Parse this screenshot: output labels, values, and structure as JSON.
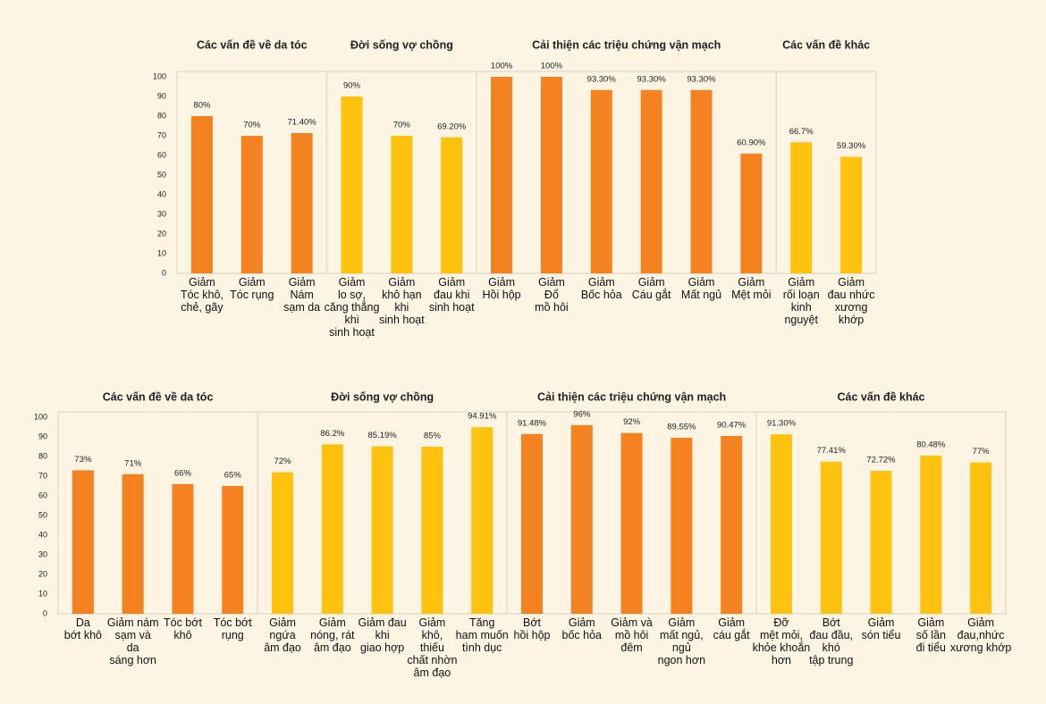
{
  "chart_data": [
    {
      "type": "bar",
      "ylim": [
        0,
        100
      ],
      "yticks": [
        0,
        10,
        20,
        30,
        40,
        50,
        60,
        70,
        80,
        90,
        100
      ],
      "grid": false,
      "groups": [
        {
          "title": "Các vấn đề về da tóc",
          "color": "#f58220",
          "categories": [
            "Giảm\nTóc khô,\nchẻ, gãy",
            "Giảm\nTóc rụng",
            "Giảm\nNám\nsạm da"
          ],
          "values": [
            80,
            70,
            71.4
          ],
          "value_labels": [
            "80%",
            "70%",
            "71.40%"
          ]
        },
        {
          "title": "Đời sống vợ chồng",
          "color": "#ffc20e",
          "categories": [
            "Giảm\nlo sợ,\ncăng thẳng\nkhi\nsinh hoạt",
            "Giảm\nkhô hạn\nkhi\nsinh hoạt",
            "Giảm\nđau khi\nsinh hoạt"
          ],
          "values": [
            90,
            70,
            69.2
          ],
          "value_labels": [
            "90%",
            "70%",
            "69.20%"
          ]
        },
        {
          "title": "Cải thiện các triệu chứng vận mạch",
          "color": "#f58220",
          "categories": [
            "Giảm\nHồi hộp",
            "Giảm\nĐổ\nmồ hôi",
            "Giảm\nBốc hỏa",
            "Giảm\nCáu gắt",
            "Giảm\nMất ngủ",
            "Giảm\nMệt mỏi"
          ],
          "values": [
            100,
            100,
            93.3,
            93.3,
            93.3,
            60.9
          ],
          "value_labels": [
            "100%",
            "100%",
            "93.30%",
            "93.30%",
            "93.30%",
            "60.90%"
          ]
        },
        {
          "title": "Các vấn đề khác",
          "color": "#ffc20e",
          "categories": [
            "Giảm\nrối loạn\nkinh\nnguyệt",
            "Giảm\nđau nhức\nxương\nkhớp"
          ],
          "values": [
            66.7,
            59.3
          ],
          "value_labels": [
            "66.7%",
            "59.30%"
          ]
        }
      ]
    },
    {
      "type": "bar",
      "ylim": [
        0,
        100
      ],
      "yticks": [
        0,
        10,
        20,
        30,
        40,
        50,
        60,
        70,
        80,
        90,
        100
      ],
      "grid": false,
      "groups": [
        {
          "title": "Các vấn đề về da tóc",
          "color": "#f58220",
          "categories": [
            "Da\nbớt khô",
            "Giảm nám\nsạm và\nda\nsáng hơn",
            "Tóc bớt\nkhô",
            "Tóc bớt\nrụng"
          ],
          "values": [
            73,
            71,
            66,
            65
          ],
          "value_labels": [
            "73%",
            "71%",
            "66%",
            "65%"
          ]
        },
        {
          "title": "Đời sống vợ chồng",
          "color": "#ffc20e",
          "categories": [
            "Giảm\nngứa\nâm đạo",
            "Giảm\nnóng, rát\nâm đạo",
            "Giảm đau\nkhi\ngiao hợp",
            "Giảm\nkhô,\nthiếu\nchất nhờn\nâm đạo",
            "Tăng\nham muốn\ntình dục"
          ],
          "values": [
            72,
            86.2,
            85.19,
            85,
            94.91
          ],
          "value_labels": [
            "72%",
            "86.2%",
            "85.19%",
            "85%",
            "94.91%"
          ]
        },
        {
          "title": "Cải thiện các triệu chứng vận mạch",
          "color": "#f58220",
          "categories": [
            "Bớt\nhồi hộp",
            "Giảm\nbốc hỏa",
            "Giảm và\nmồ hôi\nđêm",
            "Giảm\nmất ngủ,\nngủ\nngon hơn",
            "Giảm\ncáu gắt"
          ],
          "values": [
            91.48,
            96,
            92,
            89.55,
            90.47
          ],
          "value_labels": [
            "91.48%",
            "96%",
            "92%",
            "89.55%",
            "90.47%"
          ]
        },
        {
          "title": "Các vấn đề khác",
          "color": "#ffc20e",
          "categories": [
            "Đỡ\nmệt mỏi,\nkhỏe khoắn\nhơn",
            "Bớt\nđau đầu,\nkhó\ntập trung",
            "Giảm\nsón tiểu",
            "Giảm\nsố lần\nđi tiểu",
            "Giảm\nđau,nhức\nxương khớp"
          ],
          "values": [
            91.3,
            77.41,
            72.72,
            80.48,
            77
          ],
          "value_labels": [
            "91.30%",
            "77.41%",
            "72.72%",
            "80.48%",
            "77%"
          ]
        }
      ]
    }
  ]
}
